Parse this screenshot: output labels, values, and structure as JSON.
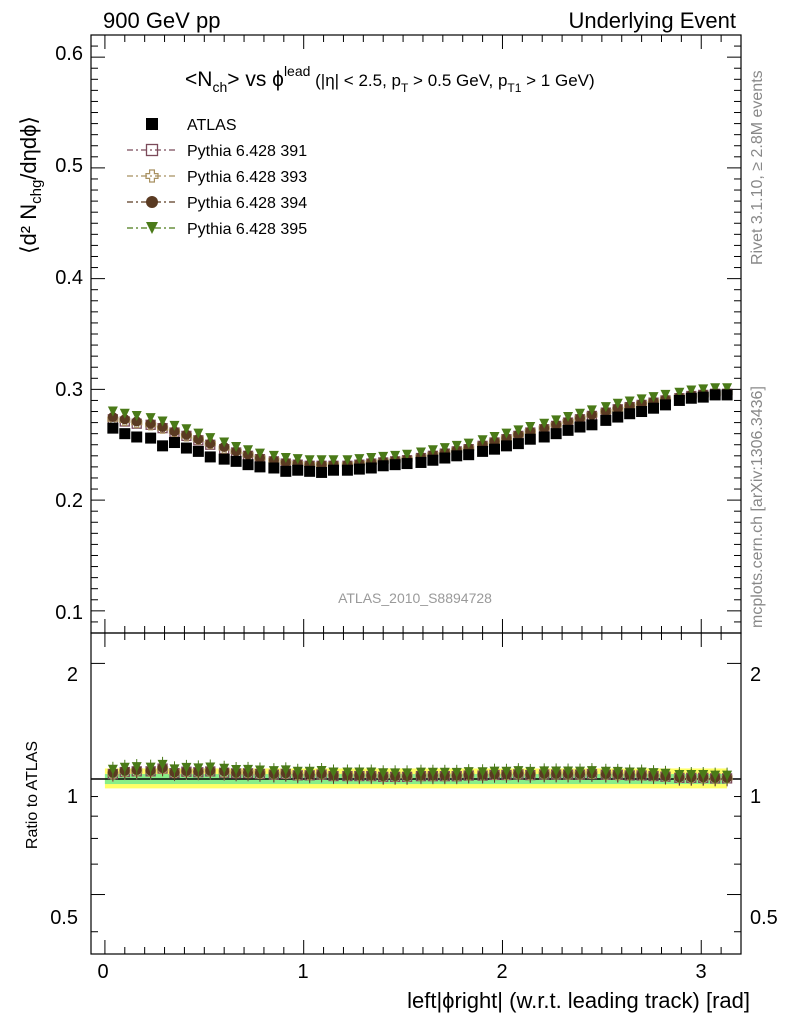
{
  "header": {
    "left": "900 GeV pp",
    "right": "Underlying Event"
  },
  "side_labels": {
    "rivet": "Rivet 3.1.10, ≥ 2.8M events",
    "mcplots": "mcplots.cern.ch [arXiv:1306.3436]"
  },
  "title": {
    "main": "<N",
    "main_sub": "ch",
    "main_mid": "> vs ϕ",
    "main_sup": "lead",
    "cuts_1": " (|η| < 2.5, p",
    "cuts_1_sub": "T",
    "cuts_2": " > 0.5 GeV, p",
    "cuts_2_sub": "T1",
    "cuts_3": " > 1 GeV)"
  },
  "watermark": "ATLAS_2010_S8894728",
  "axis": {
    "ylabel_top": "⟨d² N",
    "ylabel_top_sub": "chg",
    "ylabel_top_end": "/dηdϕ⟩",
    "ylabel_bottom": "Ratio to ATLAS",
    "xlabel": "left|ϕright| (w.r.t. leading track) [rad]",
    "x_ticks": [
      "0",
      "1",
      "2",
      "3"
    ],
    "y_ticks_top": [
      "0.1",
      "0.2",
      "0.3",
      "0.4",
      "0.5",
      "0.6"
    ],
    "y_ticks_bottom": [
      "0.5",
      "1",
      "2"
    ]
  },
  "legend": [
    {
      "label": "ATLAS",
      "marker": "square-filled",
      "color": "#000000"
    },
    {
      "label": "Pythia 6.428 391",
      "marker": "square-open",
      "color": "#7b4a5a"
    },
    {
      "label": "Pythia 6.428 393",
      "marker": "cross-open",
      "color": "#a89060"
    },
    {
      "label": "Pythia 6.428 394",
      "marker": "circle-filled",
      "color": "#5a3a22"
    },
    {
      "label": "Pythia 6.428 395",
      "marker": "triangle-down-filled",
      "color": "#4a7a18"
    }
  ],
  "chart_data": {
    "type": "scatter",
    "x": [
      0.04,
      0.1,
      0.16,
      0.23,
      0.29,
      0.35,
      0.41,
      0.47,
      0.53,
      0.6,
      0.66,
      0.72,
      0.78,
      0.85,
      0.91,
      0.97,
      1.03,
      1.09,
      1.15,
      1.22,
      1.28,
      1.34,
      1.4,
      1.46,
      1.52,
      1.59,
      1.65,
      1.71,
      1.77,
      1.83,
      1.9,
      1.96,
      2.02,
      2.08,
      2.14,
      2.21,
      2.27,
      2.33,
      2.39,
      2.45,
      2.52,
      2.58,
      2.64,
      2.7,
      2.76,
      2.82,
      2.89,
      2.95,
      3.01,
      3.07,
      3.13
    ],
    "series": [
      {
        "name": "ATLAS",
        "values": [
          0.265,
          0.26,
          0.257,
          0.256,
          0.249,
          0.252,
          0.247,
          0.244,
          0.239,
          0.237,
          0.235,
          0.232,
          0.23,
          0.229,
          0.226,
          0.227,
          0.226,
          0.225,
          0.227,
          0.227,
          0.228,
          0.229,
          0.231,
          0.232,
          0.233,
          0.234,
          0.236,
          0.238,
          0.24,
          0.241,
          0.244,
          0.246,
          0.249,
          0.251,
          0.255,
          0.257,
          0.26,
          0.263,
          0.266,
          0.268,
          0.272,
          0.275,
          0.278,
          0.28,
          0.283,
          0.286,
          0.29,
          0.292,
          0.293,
          0.295,
          0.295
        ]
      },
      {
        "name": "Pythia 6.428 391",
        "values": [
          0.273,
          0.271,
          0.269,
          0.268,
          0.265,
          0.261,
          0.258,
          0.254,
          0.25,
          0.246,
          0.243,
          0.24,
          0.237,
          0.235,
          0.233,
          0.232,
          0.231,
          0.231,
          0.231,
          0.231,
          0.232,
          0.233,
          0.234,
          0.235,
          0.236,
          0.238,
          0.24,
          0.242,
          0.244,
          0.246,
          0.249,
          0.252,
          0.255,
          0.258,
          0.261,
          0.264,
          0.267,
          0.27,
          0.273,
          0.276,
          0.279,
          0.282,
          0.284,
          0.286,
          0.288,
          0.29,
          0.292,
          0.294,
          0.295,
          0.296,
          0.296
        ]
      },
      {
        "name": "Pythia 6.428 393",
        "values": [
          0.273,
          0.272,
          0.27,
          0.268,
          0.265,
          0.262,
          0.258,
          0.255,
          0.251,
          0.247,
          0.244,
          0.241,
          0.238,
          0.236,
          0.234,
          0.233,
          0.232,
          0.232,
          0.232,
          0.232,
          0.233,
          0.234,
          0.235,
          0.236,
          0.237,
          0.239,
          0.241,
          0.243,
          0.245,
          0.247,
          0.25,
          0.253,
          0.256,
          0.259,
          0.262,
          0.265,
          0.268,
          0.271,
          0.274,
          0.277,
          0.28,
          0.282,
          0.285,
          0.287,
          0.289,
          0.291,
          0.293,
          0.294,
          0.295,
          0.296,
          0.297
        ]
      },
      {
        "name": "Pythia 6.428 394",
        "values": [
          0.275,
          0.273,
          0.271,
          0.269,
          0.266,
          0.262,
          0.259,
          0.255,
          0.251,
          0.248,
          0.244,
          0.241,
          0.238,
          0.236,
          0.234,
          0.233,
          0.232,
          0.232,
          0.232,
          0.232,
          0.233,
          0.234,
          0.235,
          0.236,
          0.237,
          0.239,
          0.241,
          0.243,
          0.245,
          0.247,
          0.25,
          0.253,
          0.256,
          0.259,
          0.262,
          0.265,
          0.268,
          0.271,
          0.274,
          0.277,
          0.28,
          0.283,
          0.285,
          0.287,
          0.289,
          0.291,
          0.293,
          0.295,
          0.296,
          0.297,
          0.297
        ]
      },
      {
        "name": "Pythia 6.428 395",
        "values": [
          0.28,
          0.278,
          0.276,
          0.274,
          0.271,
          0.267,
          0.264,
          0.26,
          0.256,
          0.252,
          0.248,
          0.245,
          0.242,
          0.24,
          0.238,
          0.237,
          0.236,
          0.236,
          0.236,
          0.236,
          0.237,
          0.238,
          0.239,
          0.24,
          0.241,
          0.243,
          0.245,
          0.247,
          0.249,
          0.251,
          0.254,
          0.257,
          0.26,
          0.263,
          0.266,
          0.269,
          0.272,
          0.275,
          0.278,
          0.281,
          0.284,
          0.287,
          0.289,
          0.291,
          0.293,
          0.295,
          0.297,
          0.299,
          0.3,
          0.301,
          0.301
        ]
      }
    ],
    "ratio_band_colors": [
      "#ffff66",
      "#88ee88"
    ],
    "xlim": [
      -0.07,
      3.2
    ],
    "ylim_top": [
      0.08,
      0.62
    ],
    "ylim_bottom": [
      0.35,
      2.4
    ],
    "y_scale_bottom": "log"
  }
}
